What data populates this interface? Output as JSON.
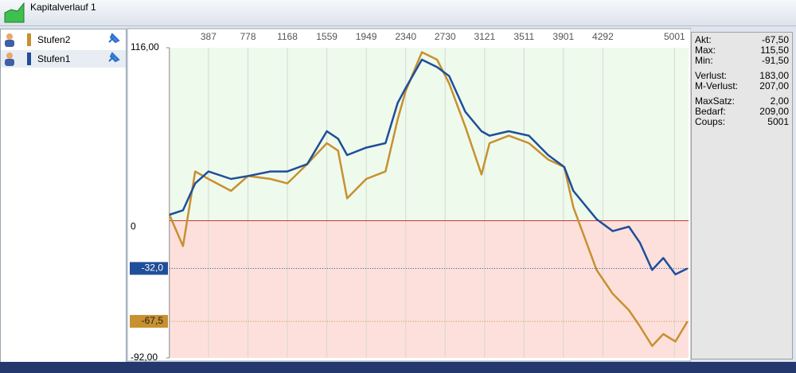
{
  "window": {
    "title": "Kapitalverlauf 1"
  },
  "chart_data": {
    "type": "line",
    "x": [
      0,
      135,
      255,
      387,
      610,
      778,
      1000,
      1168,
      1365,
      1559,
      1670,
      1760,
      1949,
      2140,
      2260,
      2340,
      2500,
      2650,
      2770,
      2930,
      3090,
      3170,
      3360,
      3560,
      3750,
      3910,
      4000,
      4230,
      4390,
      4550,
      4660,
      4780,
      4890,
      5010,
      5130
    ],
    "series": [
      {
        "name": "Stufen2",
        "color": "#c8902f",
        "values": [
          4,
          -17,
          33,
          28,
          20,
          30,
          28,
          25,
          38,
          52,
          47,
          15,
          28,
          33,
          68,
          87,
          113,
          108,
          92,
          63,
          31,
          52,
          57,
          52,
          41,
          36,
          9,
          -33,
          -49,
          -60,
          -71,
          -84,
          -76,
          -81,
          -67.5
        ]
      },
      {
        "name": "Stufen1",
        "color": "#1f4e9a",
        "values": [
          4,
          7,
          25,
          33,
          28,
          30,
          33,
          33,
          38,
          60,
          55,
          44,
          49,
          52,
          79,
          89,
          108,
          103,
          97,
          73,
          60,
          57,
          60,
          57,
          44,
          36,
          20,
          1,
          -7,
          -4,
          -15,
          -33,
          -25,
          -36,
          -32
        ]
      }
    ],
    "xlim": [
      0,
      5140
    ],
    "xticks": [
      387,
      778,
      1168,
      1559,
      1949,
      2340,
      2730,
      3121,
      3511,
      3901,
      4292,
      5001
    ],
    "ylim": [
      -92,
      116
    ],
    "yticks": [
      {
        "value": 116,
        "label": "116,00"
      },
      0,
      {
        "value": -92,
        "label": "-92,00"
      }
    ],
    "current": [
      {
        "value": -32,
        "label": "-32,0",
        "color": "#1f4e9a"
      },
      {
        "value": -67.5,
        "label": "-67,5",
        "color": "#c8902f"
      }
    ],
    "grid": true
  },
  "stats": [
    [
      {
        "label": "Akt:",
        "value": "-67,50"
      },
      {
        "label": "Max:",
        "value": "115,50"
      },
      {
        "label": "Min:",
        "value": "-91,50"
      }
    ],
    [
      {
        "label": "Verlust:",
        "value": "183,00"
      },
      {
        "label": "M-Verlust:",
        "value": "207,00"
      }
    ],
    [
      {
        "label": "MaxSatz:",
        "value": "2,00"
      },
      {
        "label": "Bedarf:",
        "value": "209,00"
      },
      {
        "label": "Coups:",
        "value": "5001"
      }
    ]
  ]
}
